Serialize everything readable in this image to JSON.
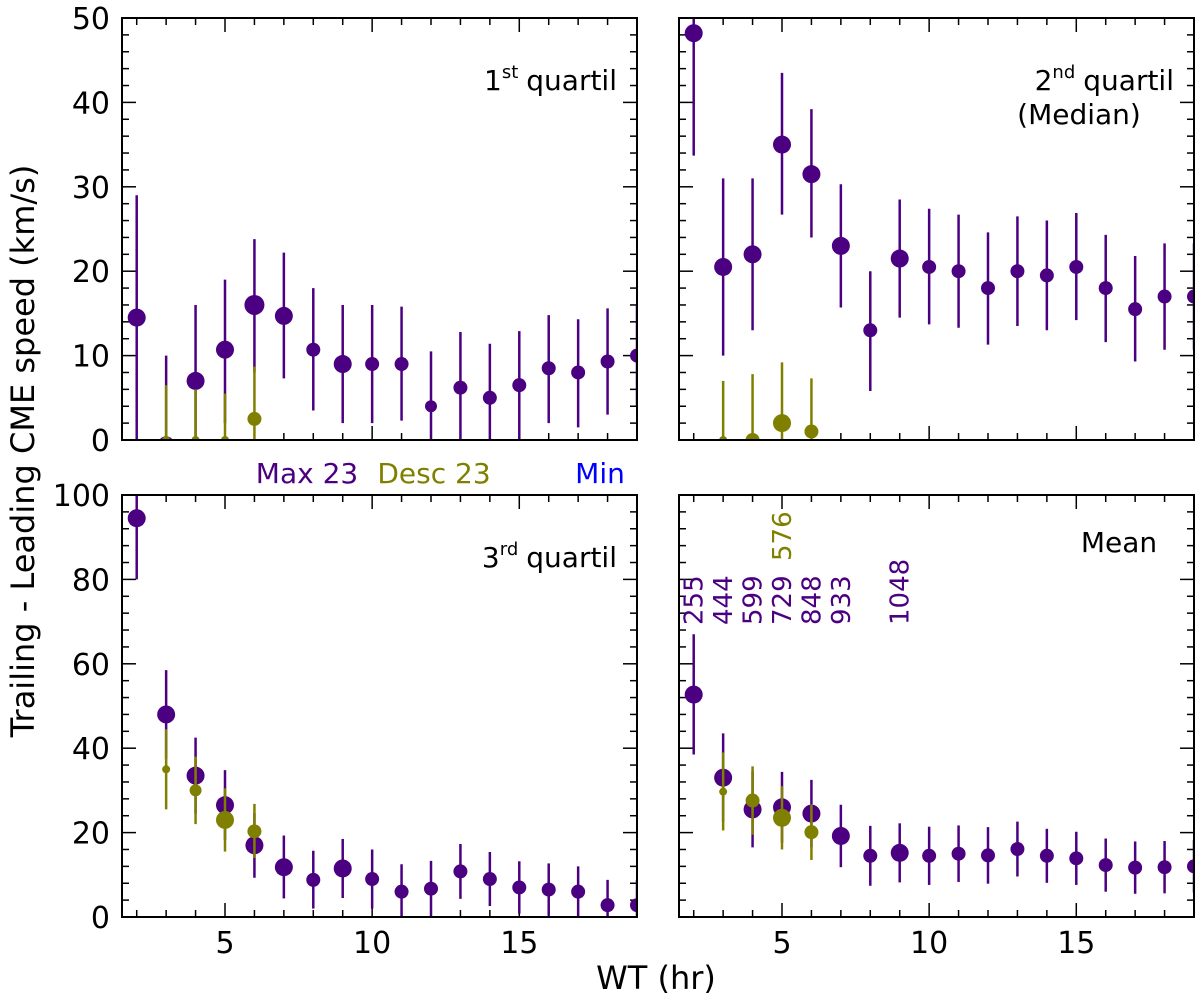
{
  "figure": {
    "ylabel": "Trailing - Leading CME speed (km/s)",
    "xlabel": "WT (hr)",
    "legend": [
      {
        "label": "Max 23",
        "color": "#4b0082"
      },
      {
        "label": "Desc 23",
        "color": "#808000"
      },
      {
        "label": "Min",
        "color": "#0000ff"
      }
    ]
  },
  "colors": {
    "max23": "#4b0082",
    "desc23": "#808000",
    "min": "#0000ff",
    "axis": "#000000"
  },
  "chart_data": [
    {
      "type": "scatter",
      "panel": "top-left",
      "label": "1",
      "label_sup": "st",
      "label_rest": "quartil",
      "xlim": [
        1.5,
        19
      ],
      "ylim": [
        0,
        50
      ],
      "xticks": [
        5,
        10,
        15
      ],
      "yticks": [
        0,
        10,
        20,
        30,
        40,
        50
      ],
      "series": [
        {
          "name": "Max 23",
          "color": "#4b0082",
          "points": [
            {
              "x": 2,
              "y": 14.5,
              "lo": 0,
              "hi": 29,
              "s": 9
            },
            {
              "x": 3,
              "y": -0.5,
              "lo": -0.5,
              "hi": 10,
              "s": 8
            },
            {
              "x": 4,
              "y": 7,
              "lo": 0,
              "hi": 16,
              "s": 9
            },
            {
              "x": 5,
              "y": 10.7,
              "lo": 2,
              "hi": 19,
              "s": 9
            },
            {
              "x": 6,
              "y": 16,
              "lo": 8,
              "hi": 23.8,
              "s": 10
            },
            {
              "x": 7,
              "y": 14.7,
              "lo": 7.3,
              "hi": 22.2,
              "s": 9
            },
            {
              "x": 8,
              "y": 10.7,
              "lo": 3.5,
              "hi": 18,
              "s": 7
            },
            {
              "x": 9,
              "y": 9,
              "lo": 2,
              "hi": 16,
              "s": 9
            },
            {
              "x": 10,
              "y": 9,
              "lo": 2,
              "hi": 16,
              "s": 7
            },
            {
              "x": 11,
              "y": 9,
              "lo": 2.3,
              "hi": 15.8,
              "s": 7
            },
            {
              "x": 12,
              "y": 4,
              "lo": -0.5,
              "hi": 10.5,
              "s": 6
            },
            {
              "x": 13,
              "y": 6.2,
              "lo": 0,
              "hi": 12.8,
              "s": 7
            },
            {
              "x": 14,
              "y": 5,
              "lo": -0.5,
              "hi": 11.4,
              "s": 7
            },
            {
              "x": 15,
              "y": 6.5,
              "lo": 0,
              "hi": 12.9,
              "s": 7
            },
            {
              "x": 16,
              "y": 8.5,
              "lo": 2,
              "hi": 14.8,
              "s": 7
            },
            {
              "x": 17,
              "y": 8,
              "lo": 1.5,
              "hi": 14.3,
              "s": 7
            },
            {
              "x": 18,
              "y": 9.3,
              "lo": 3,
              "hi": 15.6,
              "s": 7
            },
            {
              "x": 19,
              "y": 10,
              "lo": 4,
              "hi": 16,
              "s": 7
            }
          ]
        },
        {
          "name": "Desc 23",
          "color": "#808000",
          "points": [
            {
              "x": 3,
              "y": 0,
              "lo": 0,
              "hi": 6.5,
              "s": 4
            },
            {
              "x": 4,
              "y": 0,
              "lo": 0,
              "hi": 6,
              "s": 4
            },
            {
              "x": 5,
              "y": 0,
              "lo": 0,
              "hi": 5.5,
              "s": 4
            },
            {
              "x": 6,
              "y": 2.5,
              "lo": 0,
              "hi": 8.7,
              "s": 7
            }
          ]
        }
      ]
    },
    {
      "type": "scatter",
      "panel": "top-right",
      "label": "2",
      "label_sup": "nd",
      "label_rest": "quartil",
      "label_line2": "(Median)",
      "xlim": [
        1.5,
        19
      ],
      "ylim": [
        0,
        50
      ],
      "xticks": [
        5,
        10,
        15
      ],
      "yticks": [
        0,
        10,
        20,
        30,
        40,
        50
      ],
      "series": [
        {
          "name": "Max 23",
          "color": "#4b0082",
          "points": [
            {
              "x": 2,
              "y": 48.2,
              "lo": 33.7,
              "hi": 50,
              "s": 9
            },
            {
              "x": 3,
              "y": 20.5,
              "lo": 10,
              "hi": 31,
              "s": 9
            },
            {
              "x": 4,
              "y": 22,
              "lo": 13,
              "hi": 31,
              "s": 9
            },
            {
              "x": 5,
              "y": 35,
              "lo": 26.7,
              "hi": 43.5,
              "s": 9
            },
            {
              "x": 6,
              "y": 31.5,
              "lo": 24,
              "hi": 39.2,
              "s": 9
            },
            {
              "x": 7,
              "y": 23,
              "lo": 15.7,
              "hi": 30.3,
              "s": 9
            },
            {
              "x": 8,
              "y": 13,
              "lo": 5.8,
              "hi": 20,
              "s": 7
            },
            {
              "x": 9,
              "y": 21.5,
              "lo": 14.5,
              "hi": 28.5,
              "s": 9
            },
            {
              "x": 10,
              "y": 20.5,
              "lo": 13.7,
              "hi": 27.4,
              "s": 7
            },
            {
              "x": 11,
              "y": 20,
              "lo": 13.3,
              "hi": 26.7,
              "s": 7
            },
            {
              "x": 12,
              "y": 18,
              "lo": 11.3,
              "hi": 24.6,
              "s": 7
            },
            {
              "x": 13,
              "y": 20,
              "lo": 13.5,
              "hi": 26.5,
              "s": 7
            },
            {
              "x": 14,
              "y": 19.5,
              "lo": 13,
              "hi": 26,
              "s": 7
            },
            {
              "x": 15,
              "y": 20.5,
              "lo": 14.2,
              "hi": 26.9,
              "s": 7
            },
            {
              "x": 16,
              "y": 18,
              "lo": 11.6,
              "hi": 24.3,
              "s": 7
            },
            {
              "x": 17,
              "y": 15.5,
              "lo": 9.3,
              "hi": 21.8,
              "s": 7
            },
            {
              "x": 18,
              "y": 17,
              "lo": 10.7,
              "hi": 23.3,
              "s": 7
            },
            {
              "x": 19,
              "y": 17,
              "lo": 10.7,
              "hi": 23.3,
              "s": 7
            }
          ]
        },
        {
          "name": "Desc 23",
          "color": "#808000",
          "points": [
            {
              "x": 3,
              "y": 0,
              "lo": 0,
              "hi": 7,
              "s": 4
            },
            {
              "x": 4,
              "y": 0,
              "lo": 0,
              "hi": 7.8,
              "s": 7
            },
            {
              "x": 5,
              "y": 2,
              "lo": 0,
              "hi": 9.2,
              "s": 9
            },
            {
              "x": 6,
              "y": 1,
              "lo": 0,
              "hi": 7.3,
              "s": 7
            }
          ]
        }
      ]
    },
    {
      "type": "scatter",
      "panel": "bottom-left",
      "label": "3",
      "label_sup": "rd",
      "label_rest": "quartil",
      "xlim": [
        1.5,
        19
      ],
      "ylim": [
        0,
        100
      ],
      "xticks": [
        5,
        10,
        15
      ],
      "yticks": [
        0,
        20,
        40,
        60,
        80,
        100
      ],
      "series": [
        {
          "name": "Max 23",
          "color": "#4b0082",
          "points": [
            {
              "x": 2,
              "y": 94.5,
              "lo": 80,
              "hi": 100,
              "s": 9
            },
            {
              "x": 3,
              "y": 48,
              "lo": 37.5,
              "hi": 58.5,
              "s": 9
            },
            {
              "x": 4,
              "y": 33.5,
              "lo": 24.5,
              "hi": 42.5,
              "s": 9
            },
            {
              "x": 5,
              "y": 26.5,
              "lo": 18.2,
              "hi": 34.8,
              "s": 9
            },
            {
              "x": 6,
              "y": 17,
              "lo": 9.3,
              "hi": 24.6,
              "s": 9
            },
            {
              "x": 7,
              "y": 11.8,
              "lo": 4.4,
              "hi": 19.3,
              "s": 9
            },
            {
              "x": 8,
              "y": 8.8,
              "lo": 2,
              "hi": 15.7,
              "s": 7
            },
            {
              "x": 9,
              "y": 11.5,
              "lo": 4.5,
              "hi": 18.5,
              "s": 9
            },
            {
              "x": 10,
              "y": 9,
              "lo": 2,
              "hi": 16,
              "s": 7
            },
            {
              "x": 11,
              "y": 6,
              "lo": 0,
              "hi": 12.5,
              "s": 7
            },
            {
              "x": 12,
              "y": 6.7,
              "lo": 0,
              "hi": 13.3,
              "s": 7
            },
            {
              "x": 13,
              "y": 10.8,
              "lo": 4.3,
              "hi": 17.3,
              "s": 7
            },
            {
              "x": 14,
              "y": 9,
              "lo": 2.6,
              "hi": 15.4,
              "s": 7
            },
            {
              "x": 15,
              "y": 7,
              "lo": 0.8,
              "hi": 13.2,
              "s": 7
            },
            {
              "x": 16,
              "y": 6.5,
              "lo": 0.3,
              "hi": 12.7,
              "s": 7
            },
            {
              "x": 17,
              "y": 6,
              "lo": 0,
              "hi": 12,
              "s": 7
            },
            {
              "x": 18,
              "y": 2.8,
              "lo": -1,
              "hi": 8.8,
              "s": 7
            },
            {
              "x": 19,
              "y": 2.8,
              "lo": -1,
              "hi": 8.8,
              "s": 7
            }
          ]
        },
        {
          "name": "Desc 23",
          "color": "#808000",
          "points": [
            {
              "x": 3,
              "y": 35,
              "lo": 25.5,
              "hi": 44.5,
              "s": 4
            },
            {
              "x": 4,
              "y": 30,
              "lo": 22,
              "hi": 38,
              "s": 6
            },
            {
              "x": 5,
              "y": 23,
              "lo": 15.5,
              "hi": 30.5,
              "s": 9
            },
            {
              "x": 6,
              "y": 20.3,
              "lo": 14,
              "hi": 26.8,
              "s": 7
            }
          ]
        }
      ]
    },
    {
      "type": "scatter",
      "panel": "bottom-right",
      "label": "Mean",
      "xlim": [
        1.5,
        19
      ],
      "ylim": [
        0,
        100
      ],
      "xticks": [
        5,
        10,
        15
      ],
      "yticks": [
        0,
        20,
        40,
        60,
        80,
        100
      ],
      "annotations": [
        {
          "text": "255",
          "x": 2,
          "color": "#4b0082"
        },
        {
          "text": "444",
          "x": 3,
          "color": "#4b0082"
        },
        {
          "text": "599",
          "x": 4,
          "color": "#4b0082"
        },
        {
          "text": "729",
          "x": 5,
          "color": "#4b0082"
        },
        {
          "text": "576",
          "x": 5,
          "color": "#808000",
          "row": 2
        },
        {
          "text": "848",
          "x": 6,
          "color": "#4b0082"
        },
        {
          "text": "933",
          "x": 7,
          "color": "#4b0082"
        },
        {
          "text": "1048",
          "x": 9,
          "color": "#4b0082"
        }
      ],
      "series": [
        {
          "name": "Max 23",
          "color": "#4b0082",
          "points": [
            {
              "x": 2,
              "y": 52.7,
              "lo": 38.5,
              "hi": 67,
              "s": 9
            },
            {
              "x": 3,
              "y": 33,
              "lo": 22.5,
              "hi": 43.5,
              "s": 9
            },
            {
              "x": 4,
              "y": 25.5,
              "lo": 16.5,
              "hi": 34.5,
              "s": 9
            },
            {
              "x": 5,
              "y": 26,
              "lo": 17.6,
              "hi": 34.4,
              "s": 9
            },
            {
              "x": 6,
              "y": 24.5,
              "lo": 16.5,
              "hi": 32.5,
              "s": 9
            },
            {
              "x": 7,
              "y": 19.2,
              "lo": 11.8,
              "hi": 26.6,
              "s": 9
            },
            {
              "x": 8,
              "y": 14.5,
              "lo": 7.4,
              "hi": 21.6,
              "s": 7
            },
            {
              "x": 9,
              "y": 15.2,
              "lo": 8.2,
              "hi": 22.2,
              "s": 9
            },
            {
              "x": 10,
              "y": 14.5,
              "lo": 7.6,
              "hi": 21.4,
              "s": 7
            },
            {
              "x": 11,
              "y": 15,
              "lo": 8.3,
              "hi": 21.7,
              "s": 7
            },
            {
              "x": 12,
              "y": 14.6,
              "lo": 7.9,
              "hi": 21.3,
              "s": 7
            },
            {
              "x": 13,
              "y": 16.1,
              "lo": 9.6,
              "hi": 22.6,
              "s": 7
            },
            {
              "x": 14,
              "y": 14.5,
              "lo": 8.1,
              "hi": 20.9,
              "s": 7
            },
            {
              "x": 15,
              "y": 13.9,
              "lo": 7.6,
              "hi": 20.2,
              "s": 7
            },
            {
              "x": 16,
              "y": 12.3,
              "lo": 6,
              "hi": 18.6,
              "s": 7
            },
            {
              "x": 17,
              "y": 11.7,
              "lo": 5.5,
              "hi": 17.9,
              "s": 7
            },
            {
              "x": 18,
              "y": 11.8,
              "lo": 5.6,
              "hi": 18,
              "s": 7
            },
            {
              "x": 19,
              "y": 12,
              "lo": 5.8,
              "hi": 18.2,
              "s": 7
            }
          ]
        },
        {
          "name": "Desc 23",
          "color": "#808000",
          "points": [
            {
              "x": 3,
              "y": 29.7,
              "lo": 20.5,
              "hi": 39,
              "s": 4
            },
            {
              "x": 4,
              "y": 27.6,
              "lo": 19.5,
              "hi": 35.7,
              "s": 7
            },
            {
              "x": 5,
              "y": 23.5,
              "lo": 16,
              "hi": 31,
              "s": 9
            },
            {
              "x": 6,
              "y": 20.1,
              "lo": 13.5,
              "hi": 26.7,
              "s": 7
            }
          ]
        }
      ]
    }
  ]
}
